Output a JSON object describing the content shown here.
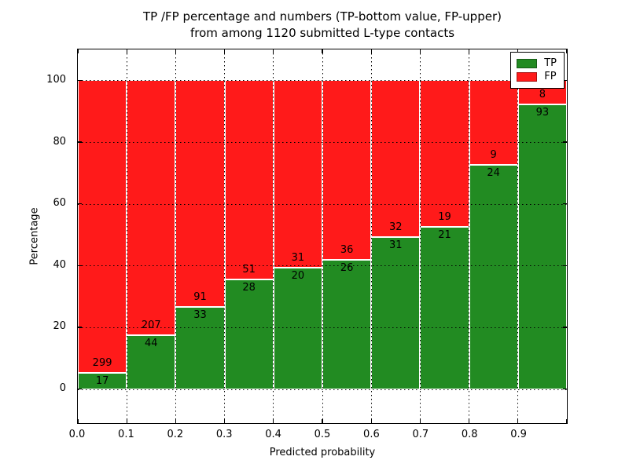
{
  "title": {
    "line1": "TP /FP percentage and numbers (TP-bottom value, FP-upper)",
    "line2": "from among 1120 submitted L-type contacts"
  },
  "chart_data": {
    "type": "bar",
    "stacked": true,
    "normalized": "each bin scaled to 100%, labels show raw counts (TP bottom, FP upper)",
    "title": "TP /FP percentage and numbers (TP-bottom value, FP-upper)\nfrom among 1120 submitted L-type contacts",
    "title_lines": [
      "TP /FP percentage and numbers (TP-bottom value, FP-upper)",
      "from among 1120 submitted L-type contacts"
    ],
    "xlabel": "Predicted probability",
    "ylabel": "Percentage",
    "total_contacts": 1120,
    "bin_edges": [
      0.0,
      0.1,
      0.2,
      0.3,
      0.4,
      0.5,
      0.6,
      0.7,
      0.8,
      0.9,
      1.0
    ],
    "categories": [
      "0.0-0.1",
      "0.1-0.2",
      "0.2-0.3",
      "0.3-0.4",
      "0.4-0.5",
      "0.5-0.6",
      "0.6-0.7",
      "0.7-0.8",
      "0.8-0.9",
      "0.9-1.0"
    ],
    "series": [
      {
        "name": "TP",
        "color": "#228b22",
        "counts": [
          17,
          44,
          33,
          28,
          20,
          26,
          31,
          21,
          24,
          93
        ]
      },
      {
        "name": "FP",
        "color": "#ff1a1a",
        "counts": [
          299,
          207,
          91,
          51,
          31,
          36,
          32,
          19,
          9,
          8
        ]
      }
    ],
    "tp_percent_per_bin": [
      5.38,
      17.53,
      26.61,
      35.44,
      39.22,
      41.94,
      49.21,
      52.5,
      72.73,
      92.08
    ],
    "x_tick_labels": [
      "0.0",
      "0.1",
      "0.2",
      "0.3",
      "0.4",
      "0.5",
      "0.6",
      "0.7",
      "0.8",
      "0.9"
    ],
    "y_tick_values": [
      0,
      20,
      40,
      60,
      80,
      100
    ],
    "y_tick_labels": [
      "0",
      "20",
      "40",
      "60",
      "80",
      "100"
    ],
    "xlim": [
      0.0,
      1.0
    ],
    "ylim": [
      -11,
      110
    ],
    "grid": "dotted, on top of bars",
    "legend_position": "upper right",
    "colors": {
      "tp_green": "#228b22",
      "fp_red": "#ff1a1a",
      "grid": "#000000",
      "background": "#ffffff"
    }
  }
}
